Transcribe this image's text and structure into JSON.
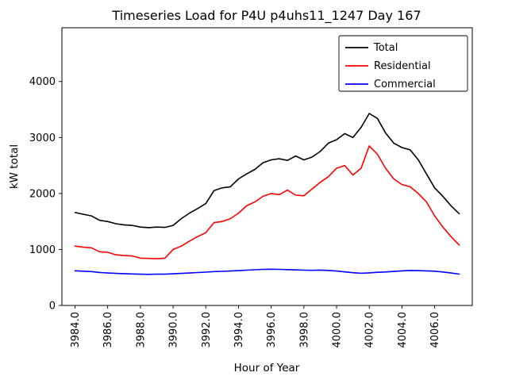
{
  "chart_data": {
    "type": "line",
    "title": "Timeseries Load for P4U p4uhs11_1247  Day 167",
    "xlabel": "Hour of Year",
    "ylabel": "kW total",
    "xlim": [
      3983.2,
      4008.3
    ],
    "ylim": [
      0,
      4960
    ],
    "grid": false,
    "legend_position": "upper right",
    "x_tick_values": [
      3984,
      3986,
      3988,
      3990,
      3992,
      3994,
      3996,
      3998,
      4000,
      4002,
      4004,
      4006
    ],
    "x_tick_labels": [
      "3984.0",
      "3986.0",
      "3988.0",
      "3990.0",
      "3992.0",
      "3994.0",
      "3996.0",
      "3998.0",
      "4000.0",
      "4002.0",
      "4004.0",
      "4006.0"
    ],
    "y_tick_values": [
      0,
      1000,
      2000,
      3000,
      4000
    ],
    "y_tick_labels": [
      "0",
      "1000",
      "2000",
      "3000",
      "4000"
    ],
    "x": [
      3984.0,
      3984.5,
      3985.0,
      3985.5,
      3986.0,
      3986.5,
      3987.0,
      3987.5,
      3988.0,
      3988.5,
      3989.0,
      3989.5,
      3990.0,
      3990.5,
      3991.0,
      3991.5,
      3992.0,
      3992.5,
      3993.0,
      3993.5,
      3994.0,
      3994.5,
      3995.0,
      3995.5,
      3996.0,
      3996.5,
      3997.0,
      3997.5,
      3998.0,
      3998.5,
      3999.0,
      3999.5,
      4000.0,
      4000.5,
      4001.0,
      4001.5,
      4002.0,
      4002.5,
      4003.0,
      4003.5,
      4004.0,
      4004.5,
      4005.0,
      4005.5,
      4006.0,
      4006.5,
      4007.0,
      4007.5
    ],
    "series": [
      {
        "name": "Total",
        "color": "#000000",
        "values": [
          1660,
          1630,
          1600,
          1520,
          1500,
          1460,
          1440,
          1430,
          1400,
          1390,
          1400,
          1395,
          1430,
          1550,
          1650,
          1730,
          1820,
          2050,
          2100,
          2120,
          2260,
          2350,
          2430,
          2550,
          2600,
          2620,
          2590,
          2670,
          2600,
          2650,
          2750,
          2900,
          2960,
          3070,
          3000,
          3180,
          3430,
          3340,
          3080,
          2900,
          2820,
          2780,
          2600,
          2350,
          2100,
          1950,
          1780,
          1640
        ]
      },
      {
        "name": "Residential",
        "color": "#ff0000",
        "values": [
          1060,
          1040,
          1030,
          960,
          950,
          905,
          890,
          885,
          845,
          840,
          835,
          845,
          1000,
          1060,
          1150,
          1230,
          1300,
          1480,
          1500,
          1550,
          1650,
          1780,
          1850,
          1950,
          2000,
          1980,
          2060,
          1970,
          1960,
          2080,
          2200,
          2300,
          2450,
          2500,
          2330,
          2450,
          2850,
          2700,
          2450,
          2260,
          2160,
          2120,
          2000,
          1850,
          1600,
          1400,
          1230,
          1080
        ]
      },
      {
        "name": "Commercial",
        "color": "#0000ff",
        "values": [
          620,
          612,
          605,
          590,
          580,
          572,
          568,
          562,
          558,
          555,
          560,
          558,
          565,
          572,
          580,
          588,
          595,
          605,
          610,
          615,
          622,
          630,
          638,
          645,
          648,
          645,
          640,
          635,
          630,
          628,
          632,
          625,
          615,
          600,
          585,
          575,
          582,
          592,
          598,
          608,
          618,
          625,
          622,
          618,
          612,
          598,
          580,
          560
        ]
      }
    ]
  }
}
